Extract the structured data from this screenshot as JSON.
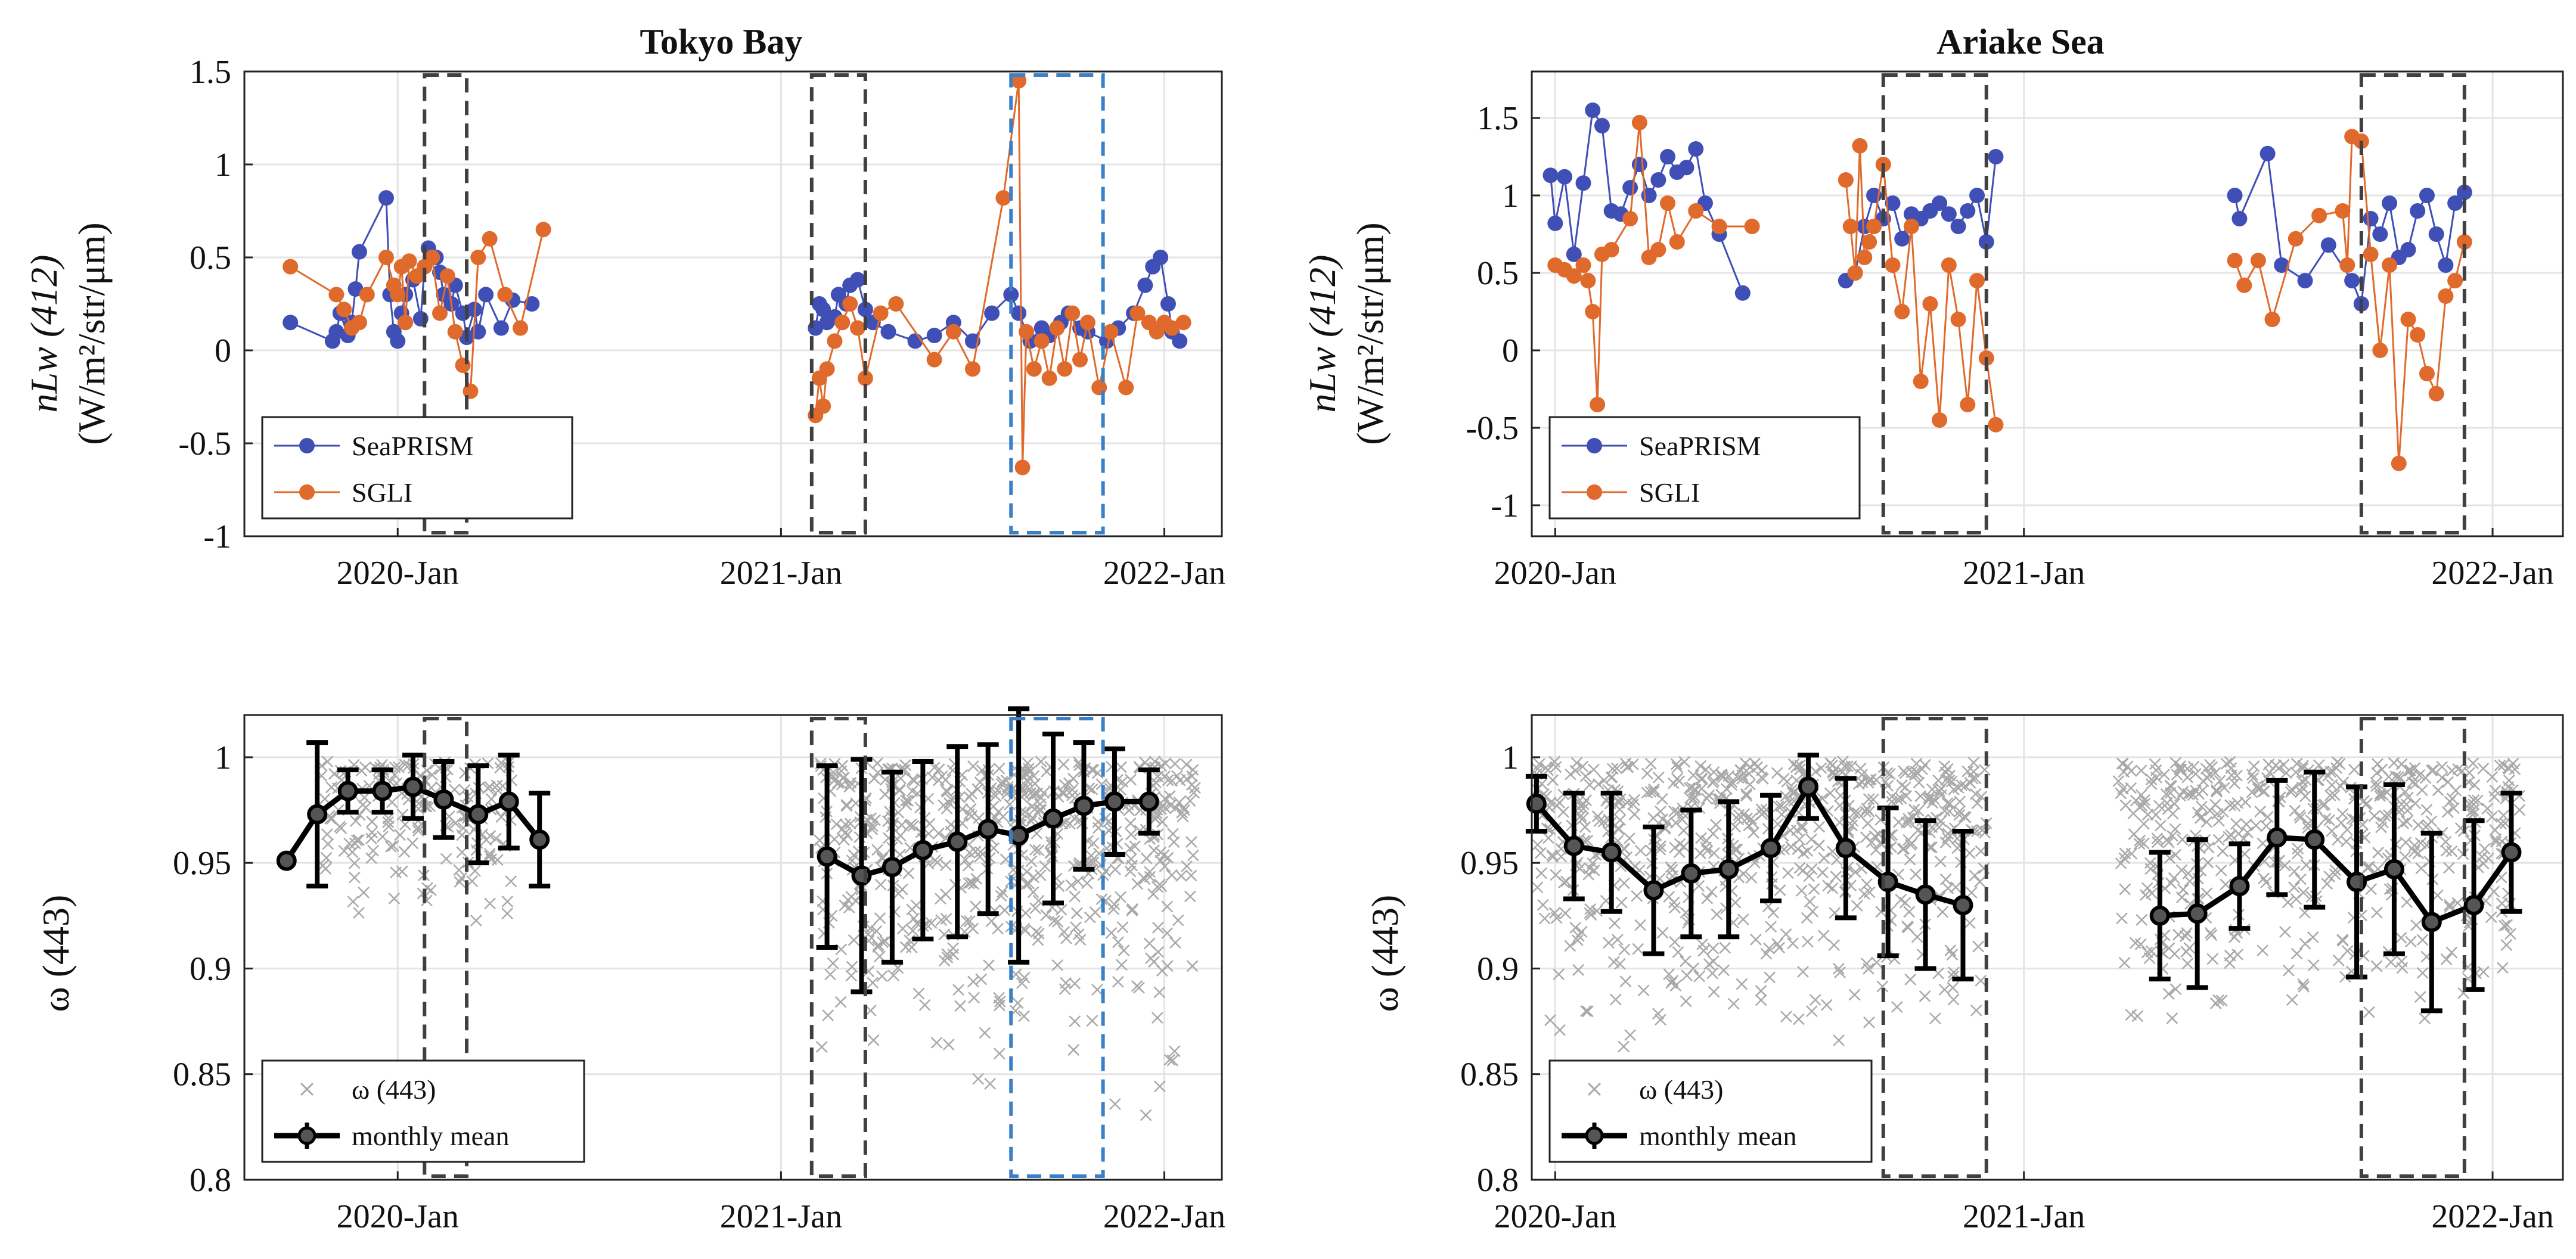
{
  "colors": {
    "seaprism": "#3f4fb5",
    "sgli": "#e06a2c",
    "omega_scatter": "#a9a9a9",
    "monthly_mean": "#000000",
    "box_gray": "#404040",
    "box_blue": "#3a80c8",
    "grid": "#e4e4e4"
  },
  "chart_data": [
    {
      "id": "tokyo_nlw",
      "type": "line",
      "title": "Tokyo Bay",
      "ylabel_line1": "nLw (412)",
      "ylabel_line2": "(W/m²/str/μm)",
      "x_unit": "decimal year",
      "xlim": [
        2019.6,
        2022.15
      ],
      "ylim": [
        -1,
        1.5
      ],
      "yticks": [
        -1,
        -0.5,
        0,
        0.5,
        1,
        1.5
      ],
      "ytick_labels": [
        "-1",
        "-0.5",
        "0",
        "0.5",
        "1",
        "1.5"
      ],
      "xticks": [
        2020.0,
        2021.0,
        2022.0
      ],
      "xtick_labels": [
        "2020-Jan",
        "2021-Jan",
        "2022-Jan"
      ],
      "boxes": [
        {
          "x0": 2020.07,
          "x1": 2020.18,
          "style": "gray"
        },
        {
          "x0": 2021.08,
          "x1": 2021.22,
          "style": "gray"
        },
        {
          "x0": 2021.6,
          "x1": 2021.84,
          "style": "blue"
        }
      ],
      "legend": [
        "SeaPRISM",
        "SGLI"
      ],
      "legend_pos": "bottom-left",
      "series": [
        {
          "name": "SeaPRISM",
          "color_key": "seaprism",
          "x": [
            2019.72,
            2019.83,
            2019.84,
            2019.85,
            2019.87,
            2019.88,
            2019.89,
            2019.9,
            2019.97,
            2019.98,
            2019.99,
            2020.0,
            2020.01,
            2020.02,
            2020.04,
            2020.06,
            2020.07,
            2020.08,
            2020.1,
            2020.11,
            2020.12,
            2020.14,
            2020.15,
            2020.17,
            2020.18,
            2020.2,
            2020.21,
            2020.23,
            2020.27,
            2020.3,
            2020.35
          ],
          "y": [
            0.15,
            0.05,
            0.1,
            0.2,
            0.08,
            0.15,
            0.33,
            0.53,
            0.82,
            0.3,
            0.1,
            0.05,
            0.2,
            0.3,
            0.38,
            0.17,
            0.45,
            0.55,
            0.5,
            0.42,
            0.3,
            0.25,
            0.35,
            0.2,
            0.07,
            0.22,
            0.1,
            0.3,
            0.12,
            0.27,
            0.25
          ]
        },
        {
          "name": "SGLI",
          "color_key": "sgli",
          "x": [
            2019.72,
            2019.84,
            2019.86,
            2019.88,
            2019.9,
            2019.92,
            2019.97,
            2019.99,
            2020.0,
            2020.01,
            2020.02,
            2020.03,
            2020.05,
            2020.07,
            2020.09,
            2020.11,
            2020.13,
            2020.15,
            2020.17,
            2020.19,
            2020.21,
            2020.24,
            2020.28,
            2020.32,
            2020.38
          ],
          "y": [
            0.45,
            0.3,
            0.22,
            0.12,
            0.15,
            0.3,
            0.5,
            0.35,
            0.3,
            0.45,
            0.15,
            0.48,
            0.4,
            0.45,
            0.5,
            0.2,
            0.4,
            0.1,
            -0.08,
            -0.22,
            0.5,
            0.6,
            0.3,
            0.12,
            0.65
          ]
        },
        {
          "name": "SeaPRISM",
          "color_key": "seaprism",
          "x": [
            2021.09,
            2021.1,
            2021.11,
            2021.12,
            2021.14,
            2021.15,
            2021.17,
            2021.18,
            2021.2,
            2021.22,
            2021.24,
            2021.28,
            2021.35,
            2021.4,
            2021.45,
            2021.5,
            2021.55,
            2021.6,
            2021.62,
            2021.65,
            2021.68,
            2021.7,
            2021.73,
            2021.75,
            2021.78,
            2021.8,
            2021.85,
            2021.88,
            2021.92,
            2021.95,
            2021.97,
            2021.99,
            2022.01,
            2022.02,
            2022.04
          ],
          "y": [
            0.12,
            0.25,
            0.22,
            0.15,
            0.18,
            0.3,
            0.25,
            0.35,
            0.38,
            0.22,
            0.15,
            0.1,
            0.05,
            0.08,
            0.15,
            0.05,
            0.2,
            0.3,
            0.2,
            0.05,
            0.12,
            0.08,
            0.15,
            0.2,
            0.12,
            0.1,
            0.05,
            0.12,
            0.2,
            0.35,
            0.45,
            0.5,
            0.25,
            0.1,
            0.05
          ]
        },
        {
          "name": "SGLI",
          "color_key": "sgli",
          "x": [
            2021.09,
            2021.1,
            2021.11,
            2021.12,
            2021.14,
            2021.16,
            2021.18,
            2021.2,
            2021.22,
            2021.26,
            2021.3,
            2021.4,
            2021.45,
            2021.5,
            2021.58,
            2021.62,
            2021.63,
            2021.64,
            2021.66,
            2021.68,
            2021.7,
            2021.72,
            2021.74,
            2021.76,
            2021.78,
            2021.8,
            2021.83,
            2021.86,
            2021.9,
            2021.93,
            2021.96,
            2021.98,
            2022.0,
            2022.02,
            2022.05
          ],
          "y": [
            -0.35,
            -0.15,
            -0.3,
            -0.1,
            0.05,
            0.15,
            0.25,
            0.12,
            -0.15,
            0.2,
            0.25,
            -0.05,
            0.1,
            -0.1,
            0.82,
            1.45,
            -0.63,
            0.1,
            -0.1,
            0.05,
            -0.15,
            0.12,
            -0.1,
            0.2,
            -0.05,
            0.15,
            -0.2,
            0.1,
            -0.2,
            0.2,
            0.15,
            0.1,
            0.15,
            0.12,
            0.15
          ]
        }
      ]
    },
    {
      "id": "ariake_nlw",
      "type": "line",
      "title": "Ariake Sea",
      "ylabel_line1": "nLw (412)",
      "ylabel_line2": "(W/m²/str/μm)",
      "x_unit": "decimal year",
      "xlim": [
        2019.95,
        2022.15
      ],
      "ylim": [
        -1.2,
        1.8
      ],
      "yticks": [
        -1,
        -0.5,
        0,
        0.5,
        1,
        1.5
      ],
      "ytick_labels": [
        "-1",
        "-0.5",
        "0",
        "0.5",
        "1",
        "1.5"
      ],
      "xticks": [
        2020.0,
        2021.0,
        2022.0
      ],
      "xtick_labels": [
        "2020-Jan",
        "2021-Jan",
        "2022-Jan"
      ],
      "boxes": [
        {
          "x0": 2020.7,
          "x1": 2020.92,
          "style": "gray"
        },
        {
          "x0": 2021.72,
          "x1": 2021.94,
          "style": "gray"
        }
      ],
      "legend": [
        "SeaPRISM",
        "SGLI"
      ],
      "legend_pos": "bottom-left",
      "series": [
        {
          "name": "SeaPRISM",
          "color_key": "seaprism",
          "x": [
            2019.99,
            2020.0,
            2020.02,
            2020.04,
            2020.06,
            2020.08,
            2020.1,
            2020.12,
            2020.14,
            2020.16,
            2020.18,
            2020.2,
            2020.22,
            2020.24,
            2020.26,
            2020.28,
            2020.3,
            2020.32,
            2020.35,
            2020.4
          ],
          "y": [
            1.13,
            0.82,
            1.12,
            0.62,
            1.08,
            1.55,
            1.45,
            0.9,
            0.88,
            1.05,
            1.2,
            1.0,
            1.1,
            1.25,
            1.15,
            1.18,
            1.3,
            0.95,
            0.75,
            0.37
          ]
        },
        {
          "name": "SGLI",
          "color_key": "sgli",
          "x": [
            2020.0,
            2020.02,
            2020.04,
            2020.06,
            2020.07,
            2020.08,
            2020.09,
            2020.1,
            2020.12,
            2020.16,
            2020.18,
            2020.2,
            2020.22,
            2020.24,
            2020.26,
            2020.3,
            2020.35,
            2020.42
          ],
          "y": [
            0.55,
            0.52,
            0.48,
            0.55,
            0.45,
            0.25,
            -0.35,
            0.62,
            0.65,
            0.85,
            1.47,
            0.6,
            0.65,
            0.95,
            0.7,
            0.9,
            0.8,
            0.8
          ]
        },
        {
          "name": "SeaPRISM",
          "color_key": "seaprism",
          "x": [
            2020.62,
            2020.64,
            2020.66,
            2020.68,
            2020.7,
            2020.72,
            2020.74,
            2020.76,
            2020.78,
            2020.8,
            2020.82,
            2020.84,
            2020.86,
            2020.88,
            2020.9,
            2020.92,
            2020.94
          ],
          "y": [
            0.45,
            0.5,
            0.8,
            1.0,
            0.85,
            0.95,
            0.72,
            0.88,
            0.85,
            0.9,
            0.95,
            0.88,
            0.8,
            0.9,
            1.0,
            0.7,
            1.25
          ]
        },
        {
          "name": "SGLI",
          "color_key": "sgli",
          "x": [
            2020.62,
            2020.63,
            2020.64,
            2020.65,
            2020.66,
            2020.67,
            2020.68,
            2020.7,
            2020.72,
            2020.74,
            2020.76,
            2020.78,
            2020.8,
            2020.82,
            2020.84,
            2020.86,
            2020.88,
            2020.9,
            2020.92,
            2020.94
          ],
          "y": [
            1.1,
            0.8,
            0.5,
            1.32,
            0.6,
            0.7,
            0.8,
            1.2,
            0.55,
            0.25,
            0.8,
            -0.2,
            0.3,
            -0.45,
            0.55,
            0.2,
            -0.35,
            0.45,
            -0.05,
            -0.48
          ]
        },
        {
          "name": "SeaPRISM",
          "color_key": "seaprism",
          "x": [
            2021.45,
            2021.46,
            2021.52,
            2021.55,
            2021.6,
            2021.65,
            2021.7,
            2021.72,
            2021.74,
            2021.76,
            2021.78,
            2021.8,
            2021.82,
            2021.84,
            2021.86,
            2021.88,
            2021.9,
            2021.92,
            2021.94
          ],
          "y": [
            1.0,
            0.85,
            1.27,
            0.55,
            0.45,
            0.68,
            0.45,
            0.3,
            0.85,
            0.75,
            0.95,
            0.6,
            0.65,
            0.9,
            1.0,
            0.75,
            0.55,
            0.95,
            1.02
          ]
        },
        {
          "name": "SGLI",
          "color_key": "sgli",
          "x": [
            2021.45,
            2021.47,
            2021.5,
            2021.53,
            2021.58,
            2021.63,
            2021.68,
            2021.69,
            2021.7,
            2021.72,
            2021.74,
            2021.76,
            2021.78,
            2021.8,
            2021.82,
            2021.84,
            2021.86,
            2021.88,
            2021.9,
            2021.92,
            2021.94
          ],
          "y": [
            0.58,
            0.42,
            0.58,
            0.2,
            0.72,
            0.87,
            0.9,
            0.55,
            1.38,
            1.35,
            0.62,
            0.0,
            0.55,
            -0.73,
            0.2,
            0.1,
            -0.15,
            -0.28,
            0.35,
            0.45,
            0.7
          ]
        }
      ]
    },
    {
      "id": "tokyo_omega",
      "type": "scatter",
      "ylabel_line1": "ω (443)",
      "x_unit": "decimal year",
      "xlim": [
        2019.6,
        2022.15
      ],
      "ylim": [
        0.8,
        1.02
      ],
      "yticks": [
        0.8,
        0.85,
        0.9,
        0.95,
        1
      ],
      "ytick_labels": [
        "0.8",
        "0.85",
        "0.9",
        "0.95",
        "1"
      ],
      "xticks": [
        2020.0,
        2021.0,
        2022.0
      ],
      "xtick_labels": [
        "2020-Jan",
        "2021-Jan",
        "2022-Jan"
      ],
      "boxes": [
        {
          "x0": 2020.07,
          "x1": 2020.18,
          "style": "gray"
        },
        {
          "x0": 2021.08,
          "x1": 2021.22,
          "style": "gray"
        },
        {
          "x0": 2021.6,
          "x1": 2021.84,
          "style": "blue"
        }
      ],
      "legend": [
        "ω (443)",
        "monthly mean"
      ],
      "legend_pos": "bottom-left",
      "scatter_label": "ω (443)",
      "scatter_clusters": [
        {
          "x0": 2019.8,
          "x1": 2020.3,
          "ylo": 0.9,
          "yhi": 0.998,
          "n": 180
        },
        {
          "x0": 2021.1,
          "x1": 2022.08,
          "ylo": 0.82,
          "yhi": 0.998,
          "n": 620
        }
      ],
      "monthly_mean": {
        "label": "monthly mean",
        "segments": [
          {
            "x": [
              2019.71,
              2019.79,
              2019.87,
              2019.96,
              2020.04,
              2020.12,
              2020.21,
              2020.29,
              2020.37
            ],
            "y": [
              0.951,
              0.973,
              0.984,
              0.984,
              0.986,
              0.98,
              0.973,
              0.979,
              0.961
            ],
            "err": [
              0.0,
              0.034,
              0.01,
              0.01,
              0.015,
              0.018,
              0.023,
              0.022,
              0.022
            ]
          },
          {
            "x": [
              2021.12,
              2021.21,
              2021.29,
              2021.37,
              2021.46,
              2021.54,
              2021.62,
              2021.71,
              2021.79,
              2021.87,
              2021.96
            ],
            "y": [
              0.953,
              0.944,
              0.948,
              0.956,
              0.96,
              0.966,
              0.963,
              0.971,
              0.977,
              0.979,
              0.979
            ],
            "err": [
              0.043,
              0.055,
              0.045,
              0.042,
              0.045,
              0.04,
              0.06,
              0.04,
              0.03,
              0.025,
              0.015
            ]
          }
        ]
      }
    },
    {
      "id": "ariake_omega",
      "type": "scatter",
      "ylabel_line1": "ω (443)",
      "x_unit": "decimal year",
      "xlim": [
        2019.95,
        2022.15
      ],
      "ylim": [
        0.8,
        1.02
      ],
      "yticks": [
        0.8,
        0.85,
        0.9,
        0.95,
        1
      ],
      "ytick_labels": [
        "0.8",
        "0.85",
        "0.9",
        "0.95",
        "1"
      ],
      "xticks": [
        2020.0,
        2021.0,
        2022.0
      ],
      "xtick_labels": [
        "2020-Jan",
        "2021-Jan",
        "2022-Jan"
      ],
      "boxes": [
        {
          "x0": 2020.7,
          "x1": 2020.92,
          "style": "gray"
        },
        {
          "x0": 2021.72,
          "x1": 2021.94,
          "style": "gray"
        }
      ],
      "legend": [
        "ω (443)",
        "monthly mean"
      ],
      "legend_pos": "bottom-left",
      "scatter_label": "ω (443)",
      "scatter_clusters": [
        {
          "x0": 2019.96,
          "x1": 2020.92,
          "ylo": 0.85,
          "yhi": 0.998,
          "n": 650
        },
        {
          "x0": 2021.2,
          "x1": 2022.06,
          "ylo": 0.85,
          "yhi": 0.998,
          "n": 520
        }
      ],
      "monthly_mean": {
        "label": "monthly mean",
        "segments": [
          {
            "x": [
              2019.96,
              2020.04,
              2020.12,
              2020.21,
              2020.29,
              2020.37,
              2020.46,
              2020.54,
              2020.62,
              2020.71,
              2020.79,
              2020.87
            ],
            "y": [
              0.978,
              0.958,
              0.955,
              0.937,
              0.945,
              0.947,
              0.957,
              0.986,
              0.957,
              0.941,
              0.935,
              0.93
            ],
            "err": [
              0.013,
              0.025,
              0.028,
              0.03,
              0.03,
              0.032,
              0.025,
              0.015,
              0.033,
              0.035,
              0.035,
              0.035
            ]
          },
          {
            "x": [
              2021.29,
              2021.37,
              2021.46,
              2021.54,
              2021.62,
              2021.71,
              2021.79,
              2021.87,
              2021.96,
              2022.04
            ],
            "y": [
              0.925,
              0.926,
              0.939,
              0.962,
              0.961,
              0.941,
              0.947,
              0.922,
              0.93,
              0.955
            ],
            "err": [
              0.03,
              0.035,
              0.02,
              0.027,
              0.032,
              0.045,
              0.04,
              0.042,
              0.04,
              0.028
            ]
          }
        ]
      }
    }
  ]
}
